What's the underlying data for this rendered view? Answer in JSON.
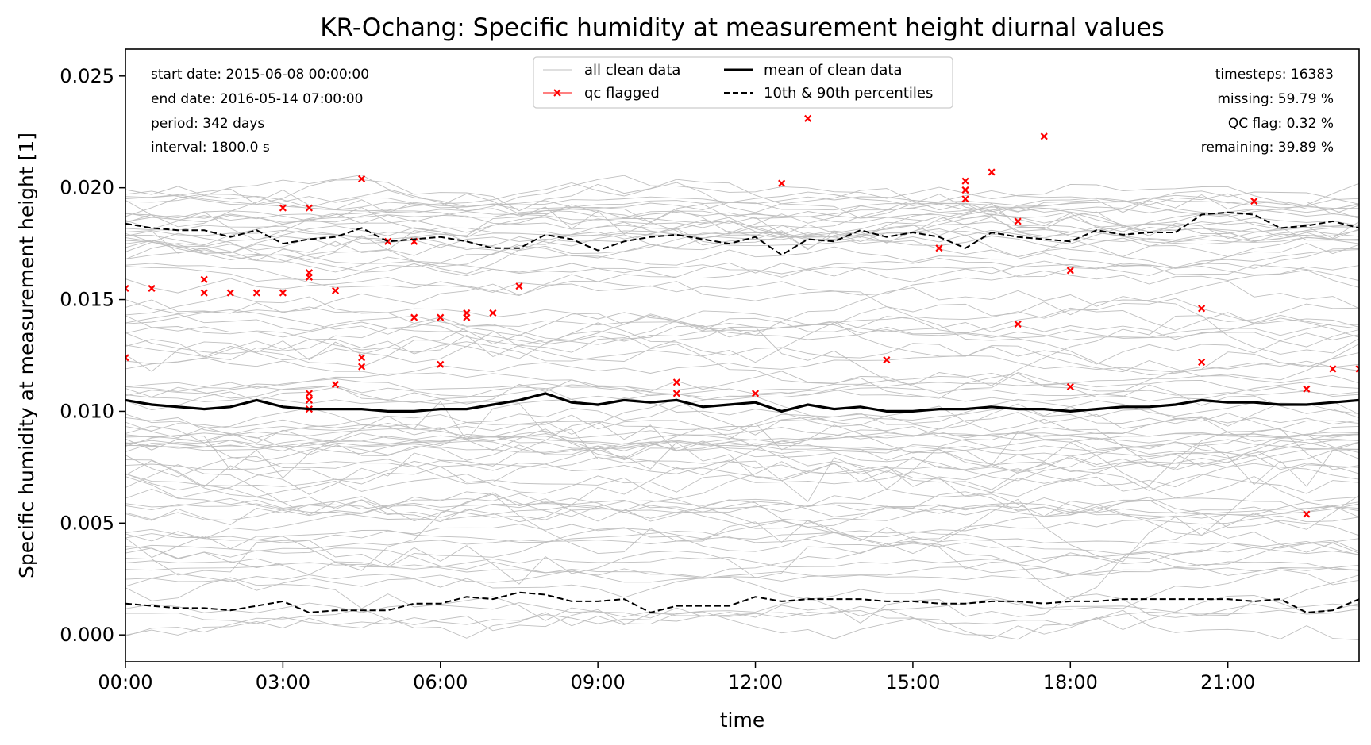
{
  "chart_data": {
    "type": "line",
    "title": "KR-Ochang: Specific humidity at measurement height diurnal values",
    "xlabel": "time",
    "ylabel": "Specific humidity at measurement height [1]",
    "xlim": [
      0,
      23.5
    ],
    "ylim": [
      -0.0012,
      0.0262
    ],
    "x_ticks": [
      {
        "value": 0,
        "label": "00:00"
      },
      {
        "value": 3,
        "label": "03:00"
      },
      {
        "value": 6,
        "label": "06:00"
      },
      {
        "value": 9,
        "label": "09:00"
      },
      {
        "value": 12,
        "label": "12:00"
      },
      {
        "value": 15,
        "label": "15:00"
      },
      {
        "value": 18,
        "label": "18:00"
      },
      {
        "value": 21,
        "label": "21:00"
      }
    ],
    "y_ticks": [
      {
        "value": 0.0,
        "label": "0.000"
      },
      {
        "value": 0.005,
        "label": "0.005"
      },
      {
        "value": 0.01,
        "label": "0.010"
      },
      {
        "value": 0.015,
        "label": "0.015"
      },
      {
        "value": 0.02,
        "label": "0.020"
      },
      {
        "value": 0.025,
        "label": "0.025"
      }
    ],
    "x_hours": [
      0,
      0.5,
      1,
      1.5,
      2,
      2.5,
      3,
      3.5,
      4,
      4.5,
      5,
      5.5,
      6,
      6.5,
      7,
      7.5,
      8,
      8.5,
      9,
      9.5,
      10,
      10.5,
      11,
      11.5,
      12,
      12.5,
      13,
      13.5,
      14,
      14.5,
      15,
      15.5,
      16,
      16.5,
      17,
      17.5,
      18,
      18.5,
      19,
      19.5,
      20,
      20.5,
      21,
      21.5,
      22,
      22.5,
      23,
      23.5
    ],
    "series": [
      {
        "name": "mean of clean data",
        "color": "#000000",
        "style": "solid",
        "values": [
          0.0105,
          0.0103,
          0.0102,
          0.0101,
          0.0102,
          0.0105,
          0.0102,
          0.0101,
          0.0101,
          0.0101,
          0.01,
          0.01,
          0.0101,
          0.0101,
          0.0103,
          0.0105,
          0.0108,
          0.0104,
          0.0103,
          0.0105,
          0.0104,
          0.0105,
          0.0102,
          0.0103,
          0.0104,
          0.01,
          0.0103,
          0.0101,
          0.0102,
          0.01,
          0.01,
          0.0101,
          0.0101,
          0.0102,
          0.0101,
          0.0101,
          0.01,
          0.0101,
          0.0102,
          0.0102,
          0.0103,
          0.0105,
          0.0104,
          0.0104,
          0.0103,
          0.0103,
          0.0104,
          0.0105
        ]
      },
      {
        "name": "10th & 90th percentiles",
        "color": "#000000",
        "style": "dashed",
        "values": [
          0.0184,
          0.0182,
          0.0181,
          0.0181,
          0.0178,
          0.0181,
          0.0175,
          0.0177,
          0.0178,
          0.0182,
          0.0176,
          0.0177,
          0.0178,
          0.0176,
          0.0173,
          0.0173,
          0.0179,
          0.0177,
          0.0172,
          0.0176,
          0.0178,
          0.0179,
          0.0177,
          0.0175,
          0.0178,
          0.017,
          0.0177,
          0.0176,
          0.0181,
          0.0178,
          0.018,
          0.0178,
          0.0173,
          0.018,
          0.0178,
          0.0177,
          0.0176,
          0.0181,
          0.0179,
          0.018,
          0.018,
          0.0188,
          0.0189,
          0.0188,
          0.0182,
          0.0183,
          0.0185,
          0.0182
        ]
      },
      {
        "name": "10th & 90th percentiles (lower)",
        "color": "#000000",
        "style": "dashed",
        "values": [
          0.0014,
          0.0013,
          0.0012,
          0.0012,
          0.0011,
          0.0013,
          0.0015,
          0.001,
          0.0011,
          0.0011,
          0.0011,
          0.0014,
          0.0014,
          0.0017,
          0.0016,
          0.0019,
          0.0018,
          0.0015,
          0.0015,
          0.0016,
          0.001,
          0.0013,
          0.0013,
          0.0013,
          0.0017,
          0.0015,
          0.0016,
          0.0016,
          0.0016,
          0.0015,
          0.0015,
          0.0014,
          0.0014,
          0.0015,
          0.0015,
          0.0014,
          0.0015,
          0.0015,
          0.0016,
          0.0016,
          0.0016,
          0.0016,
          0.0016,
          0.0015,
          0.0016,
          0.001,
          0.0011,
          0.0016
        ]
      }
    ],
    "qc_flagged": [
      [
        0,
        0.0155
      ],
      [
        0.5,
        0.0155
      ],
      [
        0,
        0.0124
      ],
      [
        1.5,
        0.0159
      ],
      [
        1.5,
        0.0153
      ],
      [
        2,
        0.0153
      ],
      [
        2.5,
        0.0153
      ],
      [
        3,
        0.0153
      ],
      [
        3,
        0.0191
      ],
      [
        3.5,
        0.0191
      ],
      [
        3.5,
        0.0162
      ],
      [
        3.5,
        0.016
      ],
      [
        4,
        0.0154
      ],
      [
        3.5,
        0.0108
      ],
      [
        3.5,
        0.0105
      ],
      [
        3.5,
        0.0101
      ],
      [
        4,
        0.0112
      ],
      [
        4.5,
        0.0204
      ],
      [
        4.5,
        0.0124
      ],
      [
        4.5,
        0.012
      ],
      [
        5,
        0.0176
      ],
      [
        5.5,
        0.0176
      ],
      [
        5.5,
        0.0142
      ],
      [
        6,
        0.0142
      ],
      [
        6.5,
        0.0142
      ],
      [
        6.5,
        0.0144
      ],
      [
        7,
        0.0144
      ],
      [
        6,
        0.0121
      ],
      [
        7.5,
        0.0156
      ],
      [
        10.5,
        0.0113
      ],
      [
        10.5,
        0.0108
      ],
      [
        12,
        0.0108
      ],
      [
        12.5,
        0.0202
      ],
      [
        13,
        0.0231
      ],
      [
        14.5,
        0.0123
      ],
      [
        15.5,
        0.0173
      ],
      [
        16,
        0.0203
      ],
      [
        16,
        0.0199
      ],
      [
        16,
        0.0195
      ],
      [
        16.5,
        0.0207
      ],
      [
        17,
        0.0185
      ],
      [
        17,
        0.0139
      ],
      [
        17.5,
        0.0223
      ],
      [
        18,
        0.0163
      ],
      [
        18,
        0.0111
      ],
      [
        20.5,
        0.0146
      ],
      [
        20.5,
        0.0122
      ],
      [
        21.5,
        0.0194
      ],
      [
        22.5,
        0.011
      ],
      [
        22.5,
        0.0054
      ],
      [
        23,
        0.0119
      ],
      [
        23.5,
        0.0119
      ]
    ],
    "qc_flagged_color": "#ff0000",
    "clean_data_color": "#bfbfbf",
    "annotations_left": [
      "start date: 2015-06-08 00:00:00",
      "end date: 2016-05-14 07:00:00",
      "period: 342 days",
      "interval: 1800.0 s"
    ],
    "annotations_right": [
      "timesteps: 16383",
      "missing: 59.79 %",
      "QC flag: 0.32 %",
      "remaining: 39.89 %"
    ],
    "legend": {
      "placement": "top-center",
      "entries": [
        "all clean data",
        "mean of clean data",
        "qc flagged",
        "10th & 90th percentiles"
      ]
    }
  }
}
